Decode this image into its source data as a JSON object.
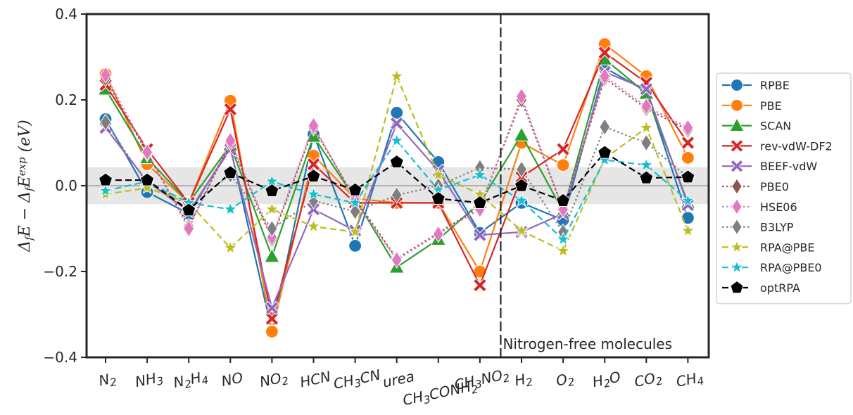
{
  "chart_data": {
    "type": "line",
    "ylabel": "Δ_f E − Δ_f E^exp (eV)",
    "ylim": [
      -0.4,
      0.4
    ],
    "yticks": [
      "0.4",
      "0.2",
      "0.0",
      "−0.2",
      "−0.4"
    ],
    "ytick_values": [
      0.4,
      0.2,
      0.0,
      -0.2,
      -0.4
    ],
    "categories": [
      "N2",
      "NH3",
      "N2H4",
      "NO",
      "NO2",
      "HCN",
      "CH3CN",
      "urea",
      "CH3CONH2",
      "CH3NO2",
      "H2",
      "O2",
      "H2O",
      "CO2",
      "CH4"
    ],
    "category_labels": [
      [
        [
          "N",
          0
        ],
        [
          "2",
          1
        ]
      ],
      [
        [
          "NH",
          0
        ],
        [
          "3",
          1
        ]
      ],
      [
        [
          "N",
          0
        ],
        [
          "2",
          1
        ],
        [
          "H",
          0
        ],
        [
          "4",
          1
        ]
      ],
      [
        [
          "NO",
          0
        ]
      ],
      [
        [
          "NO",
          0
        ],
        [
          "2",
          1
        ]
      ],
      [
        [
          "HCN",
          0
        ]
      ],
      [
        [
          "CH",
          0
        ],
        [
          "3",
          1
        ],
        [
          "CN",
          0
        ]
      ],
      [
        [
          "urea",
          0
        ]
      ],
      [
        [
          "CH",
          0
        ],
        [
          "3",
          1
        ],
        [
          "CONH",
          0
        ],
        [
          "2",
          1
        ]
      ],
      [
        [
          "CH",
          0
        ],
        [
          "3",
          1
        ],
        [
          "NO",
          0
        ],
        [
          "2",
          1
        ]
      ],
      [
        [
          "H",
          0
        ],
        [
          "2",
          1
        ]
      ],
      [
        [
          "O",
          0
        ],
        [
          "2",
          1
        ]
      ],
      [
        [
          "H",
          0
        ],
        [
          "2",
          1
        ],
        [
          "O",
          0
        ]
      ],
      [
        [
          "CO",
          0
        ],
        [
          "2",
          1
        ]
      ],
      [
        [
          "CH",
          0
        ],
        [
          "4",
          1
        ]
      ]
    ],
    "divider_after_index": 9,
    "annotation": "Nitrogen-free molecules",
    "shaded_band": [
      -0.043,
      0.043
    ],
    "legend_position": "right",
    "series": [
      {
        "name": "RPBE",
        "color": "#1f77b4",
        "marker": "circle",
        "dash": "solid",
        "values": [
          0.155,
          -0.015,
          -0.065,
          0.09,
          -0.34,
          0.12,
          -0.14,
          0.17,
          0.055,
          -0.11,
          -0.04,
          -0.08,
          0.275,
          0.22,
          -0.075
        ]
      },
      {
        "name": "PBE",
        "color": "#ff7f0e",
        "marker": "circle",
        "dash": "solid",
        "values": [
          0.26,
          0.05,
          -0.04,
          0.198,
          -0.34,
          0.07,
          -0.03,
          -0.04,
          -0.04,
          -0.2,
          0.1,
          0.048,
          0.33,
          0.255,
          0.065
        ]
      },
      {
        "name": "SCAN",
        "color": "#2ca02c",
        "marker": "triangle",
        "dash": "solid",
        "values": [
          0.225,
          0.065,
          -0.04,
          0.095,
          -0.165,
          0.115,
          -0.03,
          -0.19,
          -0.125,
          -0.04,
          0.118,
          -0.06,
          0.295,
          0.215,
          -0.04
        ]
      },
      {
        "name": "rev-vdW-DF2",
        "color": "#d62728",
        "marker": "x",
        "dash": "solid",
        "values": [
          0.235,
          0.085,
          -0.04,
          0.178,
          -0.31,
          0.05,
          -0.04,
          -0.04,
          -0.04,
          -0.232,
          0.02,
          0.085,
          0.31,
          0.24,
          0.1
        ]
      },
      {
        "name": "BEEF-vdW",
        "color": "#9467bd",
        "marker": "x",
        "dash": "solid",
        "values": [
          0.135,
          0.01,
          -0.06,
          0.085,
          -0.285,
          -0.055,
          -0.105,
          0.145,
          0.035,
          -0.115,
          -0.108,
          -0.065,
          0.265,
          0.225,
          -0.045
        ]
      },
      {
        "name": "PBE0",
        "color": "#8c564b",
        "marker": "diamond",
        "dash": "dot",
        "values": [
          0.25,
          0.075,
          -0.095,
          0.1,
          -0.125,
          0.135,
          -0.03,
          -0.17,
          -0.11,
          -0.05,
          0.2,
          -0.055,
          0.25,
          0.18,
          0.13
        ]
      },
      {
        "name": "HSE06",
        "color": "#e377c2",
        "marker": "diamond",
        "dash": "dot",
        "values": [
          0.258,
          0.078,
          -0.1,
          0.105,
          -0.12,
          0.14,
          -0.035,
          -0.173,
          -0.113,
          -0.055,
          0.208,
          -0.055,
          0.255,
          0.185,
          0.135
        ]
      },
      {
        "name": "B3LYP",
        "color": "#7f7f7f",
        "marker": "diamond",
        "dash": "dot",
        "values": [
          0.148,
          0.005,
          -0.045,
          0.025,
          -0.1,
          -0.035,
          -0.06,
          -0.022,
          0.0,
          0.042,
          0.038,
          -0.108,
          0.137,
          0.1,
          0.02
        ]
      },
      {
        "name": "RPA@PBE",
        "color": "#bcbd22",
        "marker": "star",
        "dash": "dash",
        "values": [
          -0.02,
          -0.005,
          -0.04,
          -0.145,
          -0.055,
          -0.095,
          -0.108,
          0.255,
          0.025,
          -0.02,
          -0.105,
          -0.152,
          0.063,
          0.135,
          -0.105
        ]
      },
      {
        "name": "RPA@PBE0",
        "color": "#17becf",
        "marker": "star",
        "dash": "dash",
        "values": [
          -0.012,
          0.01,
          -0.04,
          -0.055,
          0.01,
          -0.02,
          -0.04,
          0.105,
          -0.01,
          0.025,
          -0.035,
          -0.125,
          0.06,
          0.048,
          -0.035
        ]
      },
      {
        "name": "optRPA",
        "color": "#000000",
        "marker": "pentagon",
        "dash": "dash",
        "values": [
          0.013,
          0.013,
          -0.057,
          0.03,
          -0.012,
          0.022,
          -0.01,
          0.055,
          -0.03,
          -0.04,
          0.0,
          -0.035,
          0.077,
          0.018,
          0.02
        ]
      }
    ]
  }
}
